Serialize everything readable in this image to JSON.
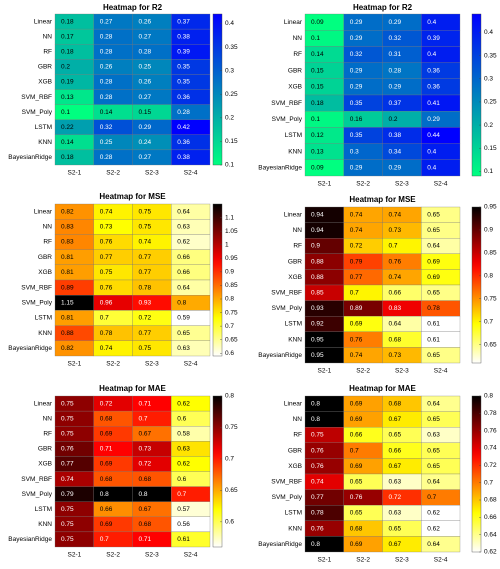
{
  "chart_data": [
    {
      "type": "heatmap",
      "title": "Heatmap for R2",
      "colormap": "winter-reversed",
      "x": [
        "S2-1",
        "S2-2",
        "S2-3",
        "S2-4"
      ],
      "y": [
        "Linear",
        "NN",
        "RF",
        "GBR",
        "XGB",
        "SVM_RBF",
        "SVM_Poly",
        "LSTM",
        "KNN",
        "BayesianRidge"
      ],
      "values": [
        [
          0.18,
          0.27,
          0.26,
          0.37
        ],
        [
          0.17,
          0.28,
          0.27,
          0.38
        ],
        [
          0.18,
          0.28,
          0.28,
          0.39
        ],
        [
          0.2,
          0.26,
          0.25,
          0.35
        ],
        [
          0.19,
          0.28,
          0.26,
          0.35
        ],
        [
          0.13,
          0.28,
          0.27,
          0.36
        ],
        [
          0.1,
          0.14,
          0.15,
          0.28
        ],
        [
          0.22,
          0.32,
          0.29,
          0.42
        ],
        [
          0.14,
          0.25,
          0.24,
          0.36
        ],
        [
          0.18,
          0.28,
          0.27,
          0.38
        ]
      ],
      "clim": [
        0.1,
        0.42
      ],
      "cticks": [
        0.1,
        0.15,
        0.2,
        0.25,
        0.3,
        0.35,
        0.4
      ]
    },
    {
      "type": "heatmap",
      "title": "Heatmap for R2",
      "colormap": "winter-reversed",
      "x": [
        "S2-1",
        "S2-2",
        "S2-3",
        "S2-4"
      ],
      "y": [
        "Linear",
        "NN",
        "RF",
        "GBR",
        "XGB",
        "SVM_RBF",
        "SVM_Poly",
        "LSTM",
        "KNN",
        "BayesianRidge"
      ],
      "values": [
        [
          0.09,
          0.29,
          0.29,
          0.4
        ],
        [
          0.1,
          0.29,
          0.32,
          0.39
        ],
        [
          0.14,
          0.32,
          0.31,
          0.4
        ],
        [
          0.15,
          0.29,
          0.28,
          0.36
        ],
        [
          0.15,
          0.29,
          0.29,
          0.36
        ],
        [
          0.18,
          0.35,
          0.37,
          0.41
        ],
        [
          0.1,
          0.16,
          0.2,
          0.29
        ],
        [
          0.12,
          0.35,
          0.38,
          0.44
        ],
        [
          0.13,
          0.3,
          0.34,
          0.4
        ],
        [
          0.09,
          0.29,
          0.29,
          0.4
        ]
      ],
      "clim": [
        0.09,
        0.44
      ],
      "cticks": [
        0.1,
        0.15,
        0.2,
        0.25,
        0.3,
        0.35,
        0.4
      ]
    },
    {
      "type": "heatmap",
      "title": "Heatmap for MSE",
      "colormap": "hot-reversed",
      "x": [
        "S2-1",
        "S2-2",
        "S2-3",
        "S2-4"
      ],
      "y": [
        "Linear",
        "NN",
        "RF",
        "GBR",
        "XGB",
        "SVM_RBF",
        "SVM_Poly",
        "LSTM",
        "KNN",
        "BayesianRidge"
      ],
      "values": [
        [
          0.82,
          0.74,
          0.75,
          0.64
        ],
        [
          0.83,
          0.73,
          0.75,
          0.63
        ],
        [
          0.83,
          0.76,
          0.74,
          0.62
        ],
        [
          0.81,
          0.77,
          0.77,
          0.66
        ],
        [
          0.81,
          0.75,
          0.77,
          0.66
        ],
        [
          0.89,
          0.76,
          0.78,
          0.64
        ],
        [
          1.15,
          0.96,
          0.93,
          0.8
        ],
        [
          0.81,
          0.7,
          0.72,
          0.59
        ],
        [
          0.88,
          0.78,
          0.77,
          0.65
        ],
        [
          0.82,
          0.74,
          0.75,
          0.63
        ]
      ],
      "clim": [
        0.59,
        1.15
      ],
      "cticks": [
        0.6,
        0.65,
        0.7,
        0.75,
        0.8,
        0.85,
        0.9,
        0.95,
        1,
        1.05,
        1.1
      ]
    },
    {
      "type": "heatmap",
      "title": "Heatmap for MSE",
      "colormap": "hot-reversed",
      "x": [
        "S2-1",
        "S2-2",
        "S2-3",
        "S2-4"
      ],
      "y": [
        "Linear",
        "NN",
        "RF",
        "GBR",
        "XGB",
        "SVM_RBF",
        "SVM_Poly",
        "LSTM",
        "KNN",
        "BayesianRidge"
      ],
      "values": [
        [
          0.94,
          0.74,
          0.74,
          0.65
        ],
        [
          0.94,
          0.74,
          0.73,
          0.65
        ],
        [
          0.9,
          0.72,
          0.7,
          0.64
        ],
        [
          0.88,
          0.79,
          0.76,
          0.69
        ],
        [
          0.88,
          0.77,
          0.74,
          0.69
        ],
        [
          0.85,
          0.7,
          0.66,
          0.65
        ],
        [
          0.93,
          0.89,
          0.83,
          0.78
        ],
        [
          0.92,
          0.69,
          0.64,
          0.61
        ],
        [
          0.95,
          0.76,
          0.68,
          0.61
        ],
        [
          0.95,
          0.74,
          0.73,
          0.65
        ]
      ],
      "clim": [
        0.61,
        0.95
      ],
      "cticks": [
        0.65,
        0.7,
        0.75,
        0.8,
        0.85,
        0.9,
        0.95
      ]
    },
    {
      "type": "heatmap",
      "title": "Heatmap for MAE",
      "colormap": "hot-reversed",
      "x": [
        "S2-1",
        "S2-2",
        "S2-3",
        "S2-4"
      ],
      "y": [
        "Linear",
        "NN",
        "RF",
        "GBR",
        "XGB",
        "SVM_RBF",
        "SVM_Poly",
        "LSTM",
        "KNN",
        "BayesianRidge"
      ],
      "values": [
        [
          0.75,
          0.72,
          0.71,
          0.62
        ],
        [
          0.75,
          0.68,
          0.7,
          0.6
        ],
        [
          0.75,
          0.69,
          0.67,
          0.58
        ],
        [
          0.76,
          0.71,
          0.73,
          0.63
        ],
        [
          0.77,
          0.69,
          0.72,
          0.62
        ],
        [
          0.74,
          0.68,
          0.68,
          0.6
        ],
        [
          0.79,
          0.8,
          0.8,
          0.7
        ],
        [
          0.75,
          0.66,
          0.67,
          0.57
        ],
        [
          0.75,
          0.69,
          0.68,
          0.56
        ],
        [
          0.75,
          0.7,
          0.71,
          0.61
        ]
      ],
      "clim": [
        0.56,
        0.8
      ],
      "cticks": [
        0.6,
        0.65,
        0.7,
        0.75,
        0.8
      ]
    },
    {
      "type": "heatmap",
      "title": "Heatmap for MAE",
      "colormap": "hot-reversed",
      "x": [
        "S2-1",
        "S2-2",
        "S2-3",
        "S2-4"
      ],
      "y": [
        "Linear",
        "NN",
        "RF",
        "GBR",
        "XGB",
        "SVM_RBF",
        "SVM_Poly",
        "LSTM",
        "KNN",
        "BayesianRidge"
      ],
      "values": [
        [
          0.8,
          0.69,
          0.68,
          0.64
        ],
        [
          0.8,
          0.69,
          0.67,
          0.65
        ],
        [
          0.75,
          0.66,
          0.65,
          0.63
        ],
        [
          0.76,
          0.7,
          0.66,
          0.65
        ],
        [
          0.76,
          0.69,
          0.67,
          0.65
        ],
        [
          0.74,
          0.65,
          0.63,
          0.64
        ],
        [
          0.77,
          0.76,
          0.72,
          0.7
        ],
        [
          0.78,
          0.65,
          0.63,
          0.62
        ],
        [
          0.76,
          0.68,
          0.65,
          0.62
        ],
        [
          0.8,
          0.69,
          0.67,
          0.64
        ]
      ],
      "clim": [
        0.62,
        0.8
      ],
      "cticks": [
        0.62,
        0.64,
        0.66,
        0.68,
        0.7,
        0.72,
        0.74,
        0.76,
        0.78,
        0.8
      ]
    }
  ]
}
